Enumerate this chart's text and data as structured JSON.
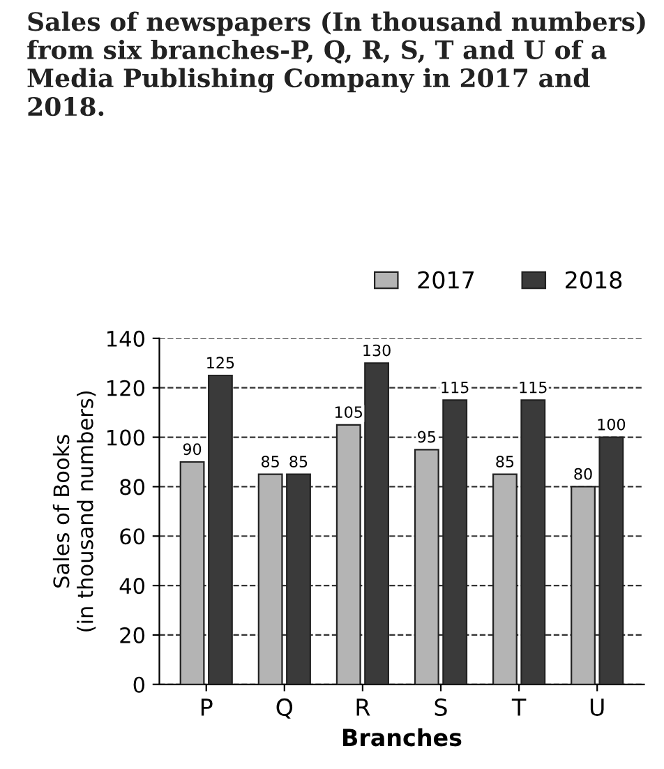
{
  "chart_data": {
    "type": "bar",
    "title": "Sales of newspapers (In thousand numbers) from six branches-P, Q, R, S, T and U of a Media Publishing Company in 2017 and 2018.",
    "xlabel": "Branches",
    "ylabel": "Sales of Books\n(in thousand numbers)",
    "categories": [
      "P",
      "Q",
      "R",
      "S",
      "T",
      "U"
    ],
    "series": [
      {
        "name": "2017",
        "color": "#b4b4b4",
        "values": [
          90,
          85,
          105,
          95,
          85,
          80
        ]
      },
      {
        "name": "2018",
        "color": "#3a3a3a",
        "values": [
          125,
          85,
          130,
          115,
          115,
          100
        ]
      }
    ],
    "ylim": [
      0,
      140
    ],
    "yticks": [
      0,
      20,
      40,
      60,
      80,
      100,
      120,
      140
    ],
    "grid": "y",
    "line_style": "dashed",
    "legend": "top right",
    "data_labels": true
  }
}
